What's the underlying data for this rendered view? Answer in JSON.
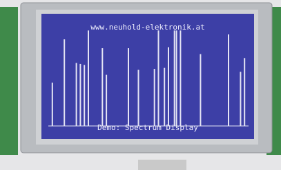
{
  "chart_data": {
    "type": "bar",
    "title": "www.neuhold-elektronik.at",
    "caption": "Demo: Spectrum Display",
    "x": [
      2,
      8,
      14,
      16,
      18,
      20,
      27,
      29,
      40,
      45,
      53,
      55,
      58,
      60,
      63,
      64,
      66,
      76,
      90,
      96,
      98
    ],
    "values": [
      44,
      88,
      64,
      63,
      62,
      97,
      79,
      52,
      79,
      57,
      58,
      97,
      59,
      80,
      97,
      97,
      97,
      73,
      93,
      55,
      69
    ],
    "xlim": [
      0,
      100
    ],
    "ylim": [
      0,
      100
    ],
    "color": "#e4e4f4"
  }
}
